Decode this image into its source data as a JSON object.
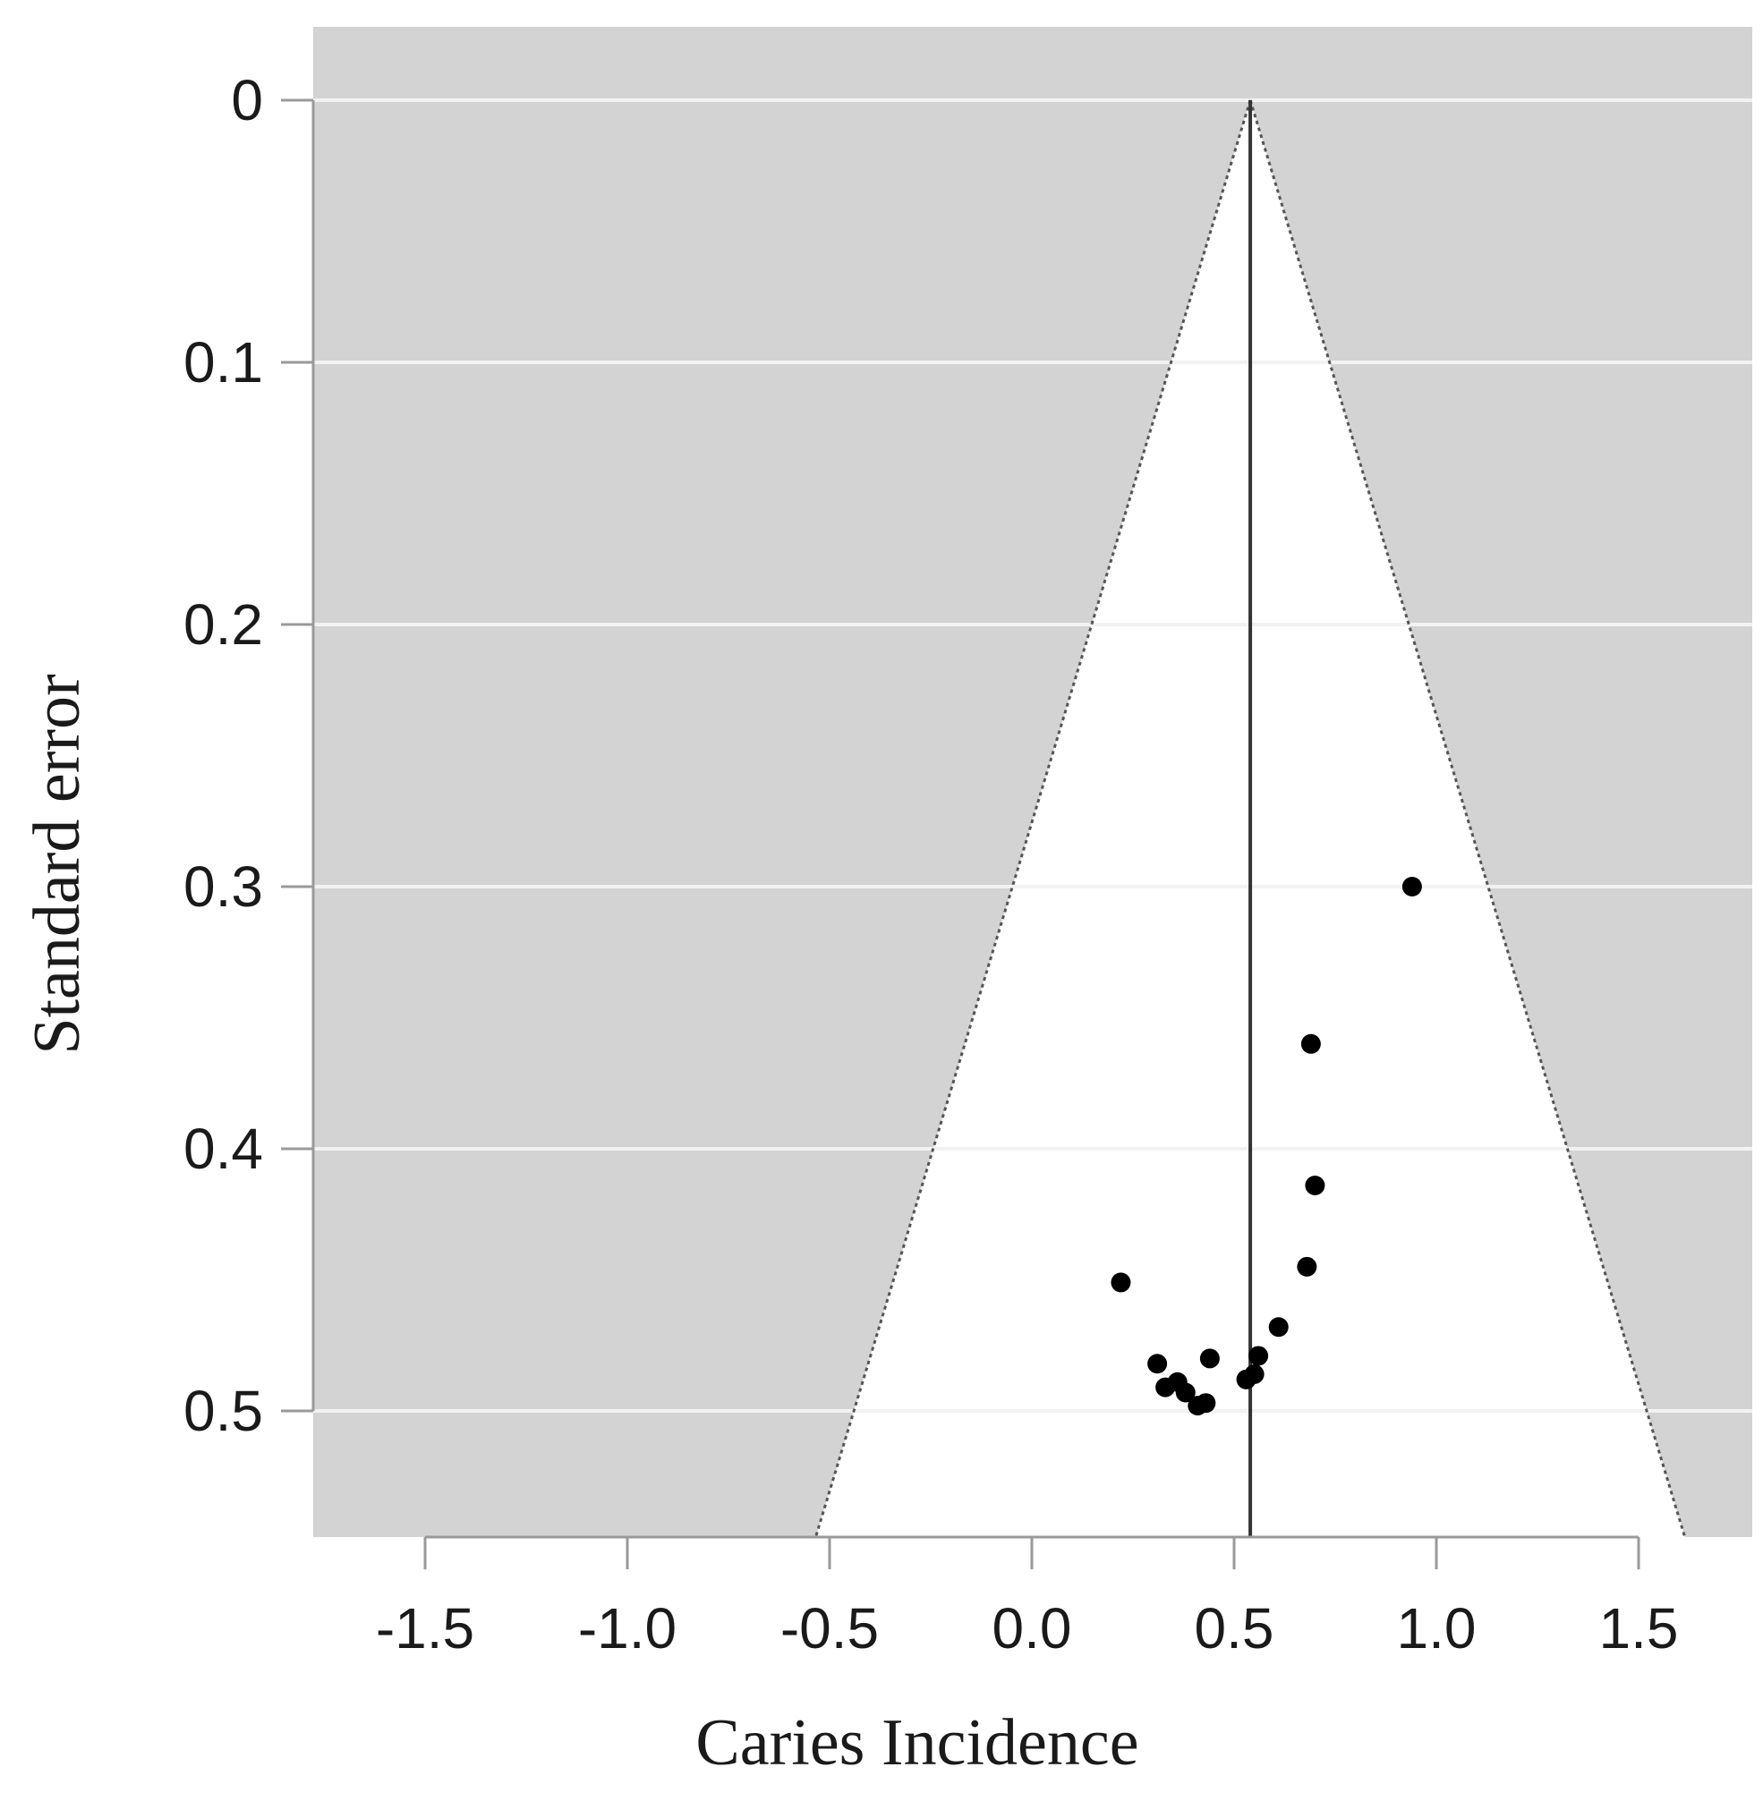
{
  "chart_data": {
    "type": "scatter",
    "title": "",
    "xlabel": "Caries Incidence",
    "ylabel": "Standard error",
    "xlim": [
      -1.78,
      1.78
    ],
    "ylim": [
      0,
      0.548
    ],
    "y_reversed": true,
    "grid": "horizontal",
    "x_ticks": [
      -1.5,
      -1.0,
      -0.5,
      0.0,
      0.5,
      1.0,
      1.5
    ],
    "x_tick_labels": [
      "-1.5",
      "-1.0",
      "-0.5",
      "0.0",
      "0.5",
      "1.0",
      "1.5"
    ],
    "y_ticks": [
      0,
      0.1,
      0.2,
      0.3,
      0.4,
      0.5
    ],
    "y_tick_labels": [
      "0",
      "0.1",
      "0.2",
      "0.3",
      "0.4",
      "0.5"
    ],
    "pooled_estimate": 0.54,
    "funnel": {
      "center": 0.54,
      "z": 1.96
    },
    "points": [
      {
        "x": 0.94,
        "y": 0.3
      },
      {
        "x": 0.69,
        "y": 0.36
      },
      {
        "x": 0.7,
        "y": 0.414
      },
      {
        "x": 0.68,
        "y": 0.445
      },
      {
        "x": 0.22,
        "y": 0.451
      },
      {
        "x": 0.61,
        "y": 0.468
      },
      {
        "x": 0.44,
        "y": 0.48
      },
      {
        "x": 0.56,
        "y": 0.479
      },
      {
        "x": 0.31,
        "y": 0.482
      },
      {
        "x": 0.55,
        "y": 0.486
      },
      {
        "x": 0.53,
        "y": 0.488
      },
      {
        "x": 0.33,
        "y": 0.491
      },
      {
        "x": 0.36,
        "y": 0.489
      },
      {
        "x": 0.38,
        "y": 0.493
      },
      {
        "x": 0.41,
        "y": 0.498
      },
      {
        "x": 0.43,
        "y": 0.497
      }
    ],
    "colors": {
      "panel": "#d3d3d3",
      "funnel_fill": "#ffffff",
      "gridline": "#f2f2f2",
      "axis": "#9a9a9a",
      "point": "#000000",
      "line": "#333333"
    }
  }
}
